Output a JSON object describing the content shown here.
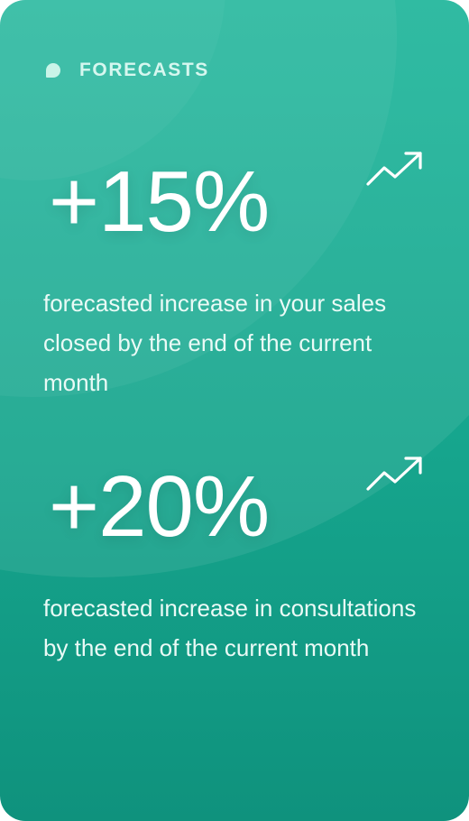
{
  "header": {
    "icon": "chat-bubble-icon",
    "label": "FORECASTS"
  },
  "stats": [
    {
      "value": "+15%",
      "trend_icon": "trending-up-icon",
      "description": "forecasted increase in your sales closed by the end of the current month"
    },
    {
      "value": "+20%",
      "trend_icon": "trending-up-icon",
      "description": "forecasted increase in consultations by the end of the current month"
    }
  ],
  "colors": {
    "card_top": "#1fb69b",
    "card_bottom": "#0f927d",
    "label": "#d6f7ef",
    "icon": "#c9f4e8",
    "text": "#ffffff"
  }
}
